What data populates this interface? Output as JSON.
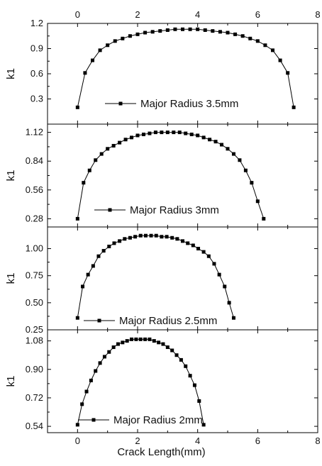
{
  "chart_data": [
    {
      "type": "line",
      "ylabel": "k1",
      "ylim": [
        0.0,
        1.2
      ],
      "yticks": [
        "0.3",
        "0.6",
        "0.9",
        "1.2"
      ],
      "xlim": [
        -1,
        8
      ],
      "xticks_top": [
        "0",
        "2",
        "4",
        "6",
        "8"
      ],
      "legend_position": "lower-center",
      "series": [
        {
          "name": "Major Radius 3.5mm",
          "x": [
            0.0,
            0.25,
            0.5,
            0.75,
            1.0,
            1.25,
            1.5,
            1.75,
            2.0,
            2.25,
            2.5,
            2.75,
            3.0,
            3.25,
            3.5,
            3.75,
            4.0,
            4.25,
            4.5,
            4.75,
            5.0,
            5.25,
            5.5,
            5.75,
            6.0,
            6.25,
            6.5,
            6.75,
            7.0,
            7.2
          ],
          "values": [
            0.2,
            0.61,
            0.76,
            0.88,
            0.94,
            0.99,
            1.02,
            1.05,
            1.07,
            1.09,
            1.1,
            1.11,
            1.12,
            1.13,
            1.13,
            1.13,
            1.13,
            1.12,
            1.11,
            1.1,
            1.09,
            1.07,
            1.05,
            1.02,
            0.99,
            0.94,
            0.88,
            0.76,
            0.61,
            0.2
          ]
        }
      ]
    },
    {
      "type": "line",
      "ylabel": "k1",
      "ylim": [
        0.2,
        1.2
      ],
      "yticks": [
        "0.28",
        "0.56",
        "0.84",
        "1.12"
      ],
      "xlim": [
        -1,
        8
      ],
      "legend_position": "lower-center",
      "series": [
        {
          "name": "Major Radius 3mm",
          "x": [
            0.0,
            0.2,
            0.4,
            0.6,
            0.8,
            1.0,
            1.2,
            1.4,
            1.6,
            1.8,
            2.0,
            2.2,
            2.4,
            2.6,
            2.8,
            3.0,
            3.2,
            3.4,
            3.6,
            3.8,
            4.0,
            4.2,
            4.4,
            4.6,
            4.8,
            5.0,
            5.2,
            5.4,
            5.6,
            5.8,
            6.0,
            6.2
          ],
          "values": [
            0.28,
            0.63,
            0.75,
            0.85,
            0.91,
            0.96,
            0.99,
            1.02,
            1.05,
            1.07,
            1.09,
            1.1,
            1.11,
            1.12,
            1.12,
            1.12,
            1.12,
            1.12,
            1.11,
            1.1,
            1.09,
            1.07,
            1.05,
            1.03,
            1.0,
            0.96,
            0.91,
            0.85,
            0.75,
            0.63,
            0.45,
            0.28
          ]
        }
      ]
    },
    {
      "type": "line",
      "ylabel": "k1",
      "ylim": [
        0.25,
        1.2
      ],
      "yticks": [
        "0.25",
        "0.50",
        "0.75",
        "1.00"
      ],
      "xlim": [
        -1,
        8
      ],
      "legend_position": "lower-center",
      "series": [
        {
          "name": "Major Radius 2.5mm",
          "x": [
            0.0,
            0.17,
            0.35,
            0.52,
            0.7,
            0.87,
            1.05,
            1.22,
            1.4,
            1.57,
            1.75,
            1.92,
            2.1,
            2.27,
            2.45,
            2.62,
            2.8,
            2.97,
            3.15,
            3.32,
            3.5,
            3.67,
            3.85,
            4.02,
            4.2,
            4.37,
            4.55,
            4.72,
            4.9,
            5.05,
            5.2
          ],
          "values": [
            0.36,
            0.65,
            0.76,
            0.84,
            0.93,
            0.98,
            1.02,
            1.05,
            1.07,
            1.09,
            1.1,
            1.11,
            1.12,
            1.12,
            1.12,
            1.12,
            1.11,
            1.11,
            1.1,
            1.09,
            1.07,
            1.05,
            1.03,
            1.0,
            0.97,
            0.93,
            0.86,
            0.76,
            0.65,
            0.5,
            0.36
          ]
        }
      ]
    },
    {
      "type": "line",
      "ylabel": "k1",
      "ylim": [
        0.5,
        1.15
      ],
      "yticks": [
        "0.54",
        "0.72",
        "0.90",
        "1.08"
      ],
      "xlim": [
        -1,
        8
      ],
      "xlabel": "Crack Length(mm)",
      "xticks_bottom": [
        "0",
        "2",
        "4",
        "6",
        "8"
      ],
      "legend_position": "lower-center",
      "series": [
        {
          "name": "Major Radius 2mm",
          "x": [
            0.0,
            0.15,
            0.3,
            0.45,
            0.6,
            0.75,
            0.9,
            1.05,
            1.2,
            1.35,
            1.5,
            1.65,
            1.8,
            1.95,
            2.1,
            2.25,
            2.4,
            2.55,
            2.7,
            2.85,
            3.0,
            3.15,
            3.3,
            3.45,
            3.6,
            3.75,
            3.9,
            4.05,
            4.2
          ],
          "values": [
            0.55,
            0.68,
            0.76,
            0.83,
            0.89,
            0.94,
            0.98,
            1.01,
            1.04,
            1.06,
            1.07,
            1.08,
            1.09,
            1.09,
            1.09,
            1.09,
            1.09,
            1.08,
            1.07,
            1.06,
            1.04,
            1.02,
            0.99,
            0.96,
            0.92,
            0.86,
            0.8,
            0.7,
            0.55
          ]
        }
      ]
    }
  ]
}
